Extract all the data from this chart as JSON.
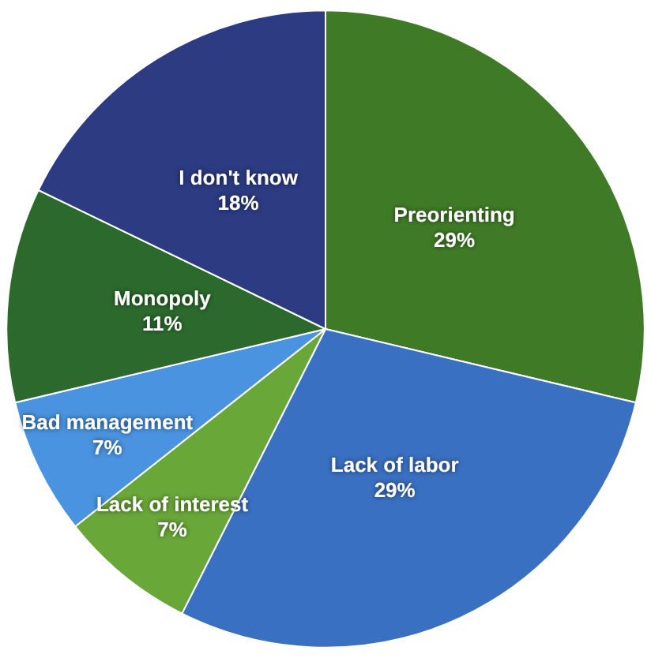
{
  "chart_data": {
    "type": "pie",
    "categories": [
      "Preorienting",
      "Lack of labor",
      "Lack of interest",
      "Bad management",
      "Monopoly",
      "I don't know"
    ],
    "values": [
      29,
      29,
      7,
      7,
      11,
      18
    ],
    "value_labels": [
      "29%",
      "29%",
      "7%",
      "7%",
      "11%",
      "18%"
    ],
    "colors": [
      "#3f7b26",
      "#3a70c2",
      "#6aa739",
      "#4a93e0",
      "#2b6a2c",
      "#2c3b82"
    ],
    "legend": false
  }
}
